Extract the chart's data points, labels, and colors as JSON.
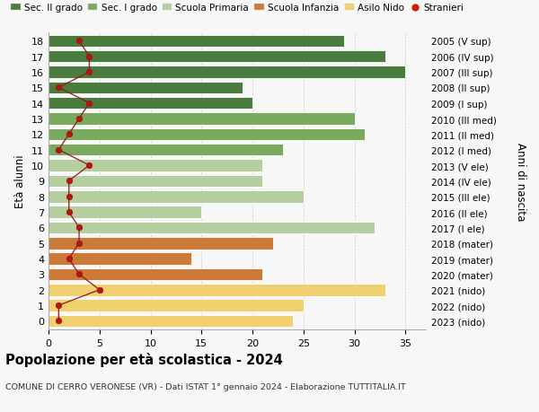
{
  "ages": [
    18,
    17,
    16,
    15,
    14,
    13,
    12,
    11,
    10,
    9,
    8,
    7,
    6,
    5,
    4,
    3,
    2,
    1,
    0
  ],
  "values": [
    29,
    33,
    35,
    19,
    20,
    30,
    31,
    23,
    21,
    21,
    25,
    15,
    32,
    22,
    14,
    21,
    33,
    25,
    24
  ],
  "stranieri": [
    3,
    4,
    4,
    1,
    4,
    3,
    2,
    1,
    4,
    2,
    2,
    2,
    3,
    3,
    2,
    3,
    5,
    1,
    1
  ],
  "right_labels": [
    "2005 (V sup)",
    "2006 (IV sup)",
    "2007 (III sup)",
    "2008 (II sup)",
    "2009 (I sup)",
    "2010 (III med)",
    "2011 (II med)",
    "2012 (I med)",
    "2013 (V ele)",
    "2014 (IV ele)",
    "2015 (III ele)",
    "2016 (II ele)",
    "2017 (I ele)",
    "2018 (mater)",
    "2019 (mater)",
    "2020 (mater)",
    "2021 (nido)",
    "2022 (nido)",
    "2023 (nido)"
  ],
  "bar_colors": [
    "#4a7c3f",
    "#4a7c3f",
    "#4a7c3f",
    "#4a7c3f",
    "#4a7c3f",
    "#7aaa5e",
    "#7aaa5e",
    "#7aaa5e",
    "#b5cfa0",
    "#b5cfa0",
    "#b5cfa0",
    "#b5cfa0",
    "#b5cfa0",
    "#cc7a3a",
    "#cc7a3a",
    "#cc7a3a",
    "#f0d070",
    "#f0d070",
    "#f0d070"
  ],
  "legend_labels": [
    "Sec. II grado",
    "Sec. I grado",
    "Scuola Primaria",
    "Scuola Infanzia",
    "Asilo Nido",
    "Stranieri"
  ],
  "legend_colors": [
    "#4a7c3f",
    "#7aaa5e",
    "#b5cfa0",
    "#cc7a3a",
    "#f0d070",
    "#cc2200"
  ],
  "ylabel": "Età alunni",
  "ylabel2": "Anni di nascita",
  "title": "Popolazione per età scolastica - 2024",
  "subtitle": "COMUNE DI CERRO VERONESE (VR) - Dati ISTAT 1° gennaio 2024 - Elaborazione TUTTITALIA.IT",
  "xlim": [
    0,
    37
  ],
  "bg_color": "#f7f7f7",
  "stranieri_color": "#bb1111",
  "stranieri_line_color": "#8b1a1a",
  "xticks": [
    0,
    5,
    10,
    15,
    20,
    25,
    30,
    35
  ]
}
